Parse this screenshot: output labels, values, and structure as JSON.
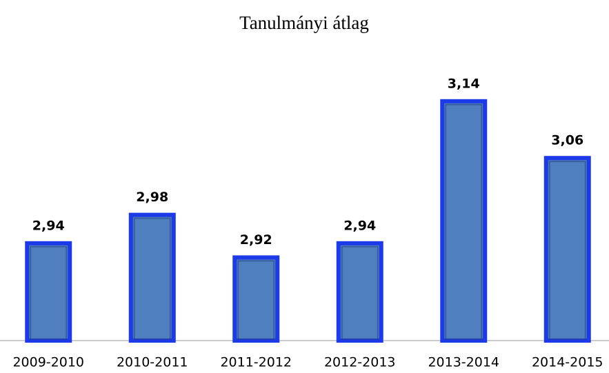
{
  "chart_data": {
    "type": "bar",
    "title": "Tanulmányi átlag",
    "categories": [
      "2009-2010",
      "2010-2011",
      "2011-2012",
      "2012-2013",
      "2013-2014",
      "2014-2015"
    ],
    "values": [
      2.94,
      2.98,
      2.92,
      2.94,
      3.14,
      3.06
    ],
    "value_labels": [
      "2,94",
      "2,98",
      "2,92",
      "2,94",
      "3,14",
      "3,06"
    ],
    "color": "#4f7fbf",
    "border_color": "#1c3ae8",
    "ylim": [
      2.8,
      3.2
    ]
  }
}
